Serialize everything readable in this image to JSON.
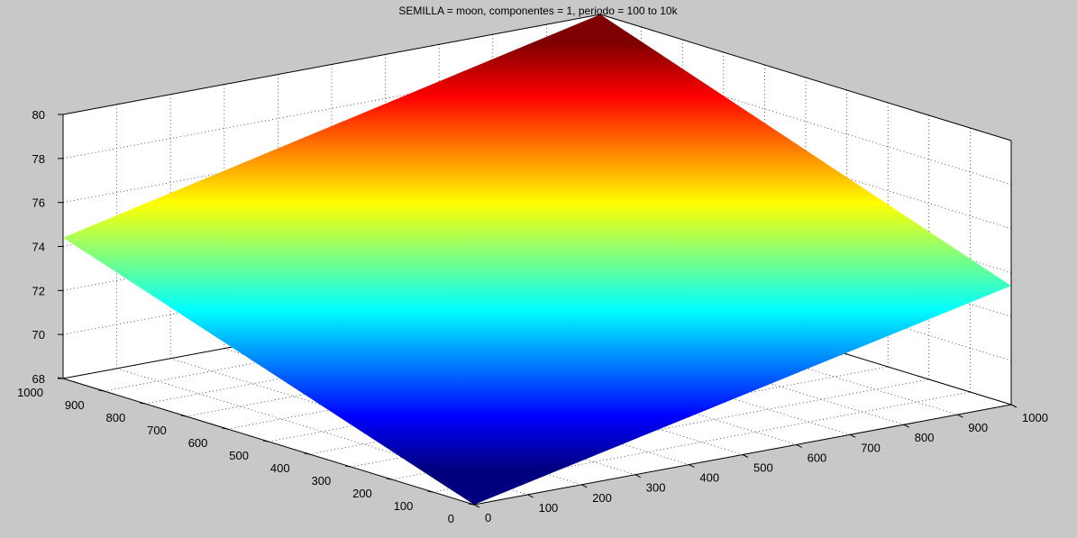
{
  "chart_data": {
    "type": "surface",
    "title": "SEMILLA = moon, componentes = 1, periodo = 100 to 10k",
    "xlabel": "",
    "ylabel": "",
    "zlabel": "",
    "xlim": [
      0,
      1000
    ],
    "ylim": [
      0,
      1000
    ],
    "zlim": [
      68,
      80
    ],
    "grid": true,
    "colormap": "jet",
    "x_ticks": [
      "0",
      "100",
      "200",
      "300",
      "400",
      "500",
      "600",
      "700",
      "800",
      "900",
      "1000"
    ],
    "y_ticks": [
      "0",
      "100",
      "200",
      "300",
      "400",
      "500",
      "600",
      "700",
      "800",
      "900",
      "1000"
    ],
    "z_ticks": [
      "68",
      "70",
      "72",
      "74",
      "76",
      "78",
      "80"
    ],
    "surface": {
      "description_points": [
        {
          "x": 0,
          "y": 0,
          "z": 68.0
        },
        {
          "x": 1000,
          "y": 0,
          "z": 73.4
        },
        {
          "x": 0,
          "y": 1000,
          "z": 74.4
        },
        {
          "x": 1000,
          "y": 1000,
          "z": 80.0
        }
      ]
    },
    "colors": {
      "background": "#c8c8c8",
      "axes_background": "#ffffff"
    }
  }
}
